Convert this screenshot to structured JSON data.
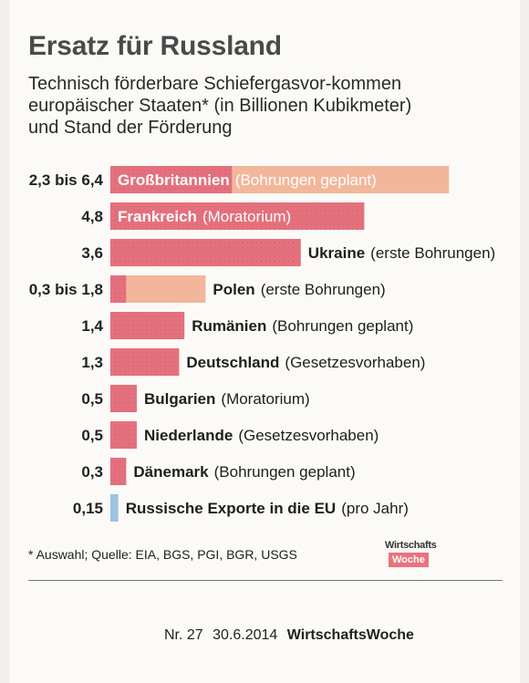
{
  "header": {
    "title": "Ersatz für Russland",
    "subtitle": "Technisch förderbare Schiefergasvor-kommen europäischer Staaten* (in Billionen Kubikmeter) und Stand der Förderung"
  },
  "chart_data": {
    "type": "bar",
    "orientation": "horizontal",
    "title": "Ersatz für Russland",
    "colors": {
      "low": "#e5707d",
      "range": "#f2b79a"
    },
    "rows": [
      {
        "value_label": "2,3 bis 6,4",
        "low": 2.3,
        "high": 6.4,
        "country": "Großbritannien",
        "status": "(Bohrungen geplant)"
      },
      {
        "value_label": "4,8",
        "low": 4.8,
        "high": 4.8,
        "country": "Frankreich",
        "status": "(Moratorium)"
      },
      {
        "value_label": "3,6",
        "low": 3.6,
        "high": 3.6,
        "country": "Ukraine",
        "status": "(erste Bohrungen)"
      },
      {
        "value_label": "0,3 bis 1,8",
        "low": 0.3,
        "high": 1.8,
        "country": "Polen",
        "status": "(erste Bohrungen)"
      },
      {
        "value_label": "1,4",
        "low": 1.4,
        "high": 1.4,
        "country": "Rumänien",
        "status": "(Bohrungen geplant)"
      },
      {
        "value_label": "1,3",
        "low": 1.3,
        "high": 1.3,
        "country": "Deutschland",
        "status": "(Gesetzesvorhaben)"
      },
      {
        "value_label": "0,5",
        "low": 0.5,
        "high": 0.5,
        "country": "Bulgarien",
        "status": "(Moratorium)"
      },
      {
        "value_label": "0,5",
        "low": 0.5,
        "high": 0.5,
        "country": "Niederlande",
        "status": "(Gesetzesvorhaben)"
      },
      {
        "value_label": "0,3",
        "low": 0.3,
        "high": 0.3,
        "country": "Dänemark",
        "status": "(Bohrungen geplant)"
      },
      {
        "value_label": "0,15",
        "low": 0.15,
        "high": 0.15,
        "country": "Russische Exporte in die EU",
        "status": "(pro Jahr)",
        "highlight": "#9cc3e3"
      }
    ]
  },
  "footer": {
    "footnote": "* Auswahl; Quelle: EIA, BGS, PGI, BGR, USGS",
    "logo_line1": "Wirtschafts",
    "logo_line2": "Woche",
    "issue": "Nr. 27",
    "date": "30.6.2014",
    "magazine": "WirtschaftsWoche"
  }
}
